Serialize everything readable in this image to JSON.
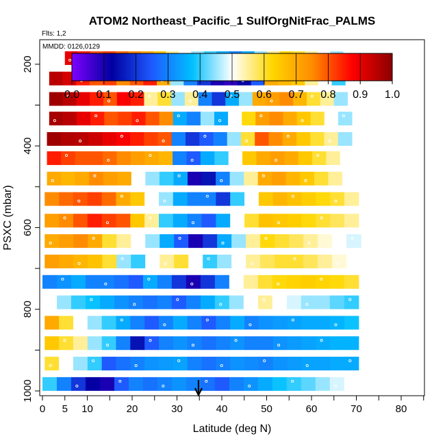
{
  "header": {
    "title": "ATOM2 Northeast_Pacific_1 SulfOrgNitFrac_PALMS",
    "flights_note": "Flts: 1,2",
    "date_note": "MMDD: 0126,0129"
  },
  "colors": {
    "scale": [
      "#7f00ff",
      "#0000a0",
      "#1e5aff",
      "#00bfff",
      "#ffffff",
      "#ffd700",
      "#ff8c00",
      "#ff0000",
      "#8b0000"
    ],
    "marker": "#ffffff",
    "arrow": "#000000"
  },
  "chart_data": {
    "type": "heatmap",
    "xlabel": "Latitude (deg N)",
    "ylabel": "PSXC (mbar)",
    "xlim": [
      0,
      85
    ],
    "ylim_reversed": [
      1000,
      150
    ],
    "x_ticks": [
      0,
      5,
      10,
      20,
      30,
      40,
      50,
      60,
      70,
      80
    ],
    "x_minor_ticks": [
      15,
      25,
      35,
      45,
      55,
      65,
      75,
      85
    ],
    "y_ticks": [
      200,
      400,
      600,
      800,
      1000
    ],
    "y_minor_ticks": [
      300,
      500,
      700,
      900
    ],
    "colorbar": {
      "range": [
        0,
        1
      ],
      "ticks": [
        "0.0",
        "0.1",
        "0.2",
        "0.3",
        "0.4",
        "0.5",
        "0.6",
        "0.7",
        "0.8",
        "0.9",
        "1.0"
      ]
    },
    "profile_marker_latitude": 34.8,
    "layers": [
      {
        "p": 185,
        "lat_start": 5,
        "lat_end": 67,
        "values": [
          0.9,
          0.85,
          0.8,
          0.82,
          0.78,
          0.75,
          0.7,
          0.65,
          0.55,
          0.5,
          0.45,
          0.4,
          0.35,
          0.3,
          0.35,
          0.45,
          0.55,
          0.62,
          0.6,
          0.55,
          0.5,
          0.45
        ]
      },
      {
        "p": 235,
        "lat_start": 1.5,
        "lat_end": 67.5,
        "values": [
          0.95,
          0.92,
          0.85,
          0.8,
          0.82,
          0.75,
          0.8,
          0.85,
          0.7,
          0.45,
          0.3,
          0.2,
          0.1,
          0.08,
          0.12,
          0.25,
          0.7,
          0.68,
          0.65,
          0.55,
          0.5,
          0.4
        ]
      },
      {
        "p": 285,
        "lat_start": 1.5,
        "lat_end": 68,
        "values": [
          0.98,
          0.95,
          0.9,
          0.85,
          0.8,
          0.88,
          0.85,
          0.55,
          0.6,
          0.45,
          0.55,
          0.3,
          0.2,
          0.35,
          0.45,
          0.7,
          0.72,
          0.75,
          0.68,
          0.6,
          0.55,
          0.45
        ]
      },
      {
        "p": 333,
        "lat_start": 1.5,
        "lat_end": 69,
        "values": [
          0.97,
          0.95,
          0.9,
          0.85,
          0.8,
          0.82,
          0.85,
          0.8,
          0.75,
          0.35,
          0.3,
          0.45,
          0.35,
          0.5,
          0.62,
          0.72,
          0.75,
          0.7,
          0.65,
          0.6,
          0.5,
          0.45
        ]
      },
      {
        "p": 383,
        "lat_start": 1,
        "lat_end": 69,
        "values": [
          0.98,
          0.96,
          0.95,
          0.93,
          0.9,
          0.88,
          0.85,
          0.82,
          0.8,
          0.3,
          0.2,
          0.25,
          0.3,
          0.45,
          0.6,
          0.8,
          0.75,
          0.7,
          0.65,
          0.6,
          0.55,
          0.45
        ]
      },
      {
        "p": 430,
        "lat_start": 1,
        "lat_end": 69.5,
        "values": [
          0.85,
          0.82,
          0.8,
          0.8,
          0.78,
          0.75,
          0.72,
          0.7,
          0.68,
          0.3,
          0.25,
          0.35,
          0.4,
          0.5,
          0.65,
          0.7,
          0.72,
          0.7,
          0.65,
          0.6,
          0.55,
          0.5
        ]
      },
      {
        "p": 480,
        "lat_start": 1,
        "lat_end": 70,
        "values": [
          0.7,
          0.68,
          0.7,
          0.75,
          0.72,
          0.7,
          0.5,
          0.45,
          0.4,
          0.35,
          0.1,
          0.15,
          0.3,
          0.45,
          0.55,
          0.7,
          0.72,
          0.68,
          0.65,
          0.6,
          0.55,
          0.5
        ]
      },
      {
        "p": 530,
        "lat_start": 0.5,
        "lat_end": 70.5,
        "values": [
          0.75,
          0.78,
          0.8,
          0.82,
          0.78,
          0.7,
          0.65,
          0.5,
          0.45,
          0.35,
          0.3,
          0.3,
          0.2,
          0.4,
          0.5,
          0.65,
          0.68,
          0.66,
          0.64,
          0.62,
          0.6,
          0.55
        ]
      },
      {
        "p": 583,
        "lat_start": 0.5,
        "lat_end": 70.5,
        "values": [
          0.72,
          0.75,
          0.8,
          0.85,
          0.82,
          0.8,
          0.65,
          0.55,
          0.4,
          0.35,
          0.3,
          0.25,
          0.35,
          0.5,
          0.6,
          0.66,
          0.65,
          0.64,
          0.62,
          0.6,
          0.58,
          0.55
        ]
      },
      {
        "p": 633,
        "lat_start": 0.5,
        "lat_end": 71,
        "values": [
          0.7,
          0.72,
          0.75,
          0.7,
          0.6,
          0.55,
          0.5,
          0.45,
          0.35,
          0.25,
          0.1,
          0.2,
          0.35,
          0.45,
          0.55,
          0.62,
          0.6,
          0.58,
          0.55,
          0.52,
          0.5,
          0.48
        ]
      },
      {
        "p": 683,
        "lat_start": 0.5,
        "lat_end": 71,
        "values": [
          0.72,
          0.7,
          0.68,
          0.66,
          0.6,
          0.45,
          0.4,
          0.5,
          0.55,
          0.6,
          0.5,
          0.4,
          0.45,
          0.5,
          0.55,
          0.58,
          0.6,
          0.6,
          0.58,
          0.55,
          0.52,
          0.5
        ]
      },
      {
        "p": 733,
        "lat_start": 0,
        "lat_end": 70.5,
        "values": [
          0.3,
          0.32,
          0.35,
          0.3,
          0.3,
          0.28,
          0.25,
          0.35,
          0.3,
          0.2,
          0.1,
          0.2,
          0.3,
          0.5,
          0.55,
          0.6,
          0.62,
          0.63,
          0.64,
          0.63,
          0.62,
          0.6
        ]
      },
      {
        "p": 783,
        "lat_start": 0,
        "lat_end": 70.5,
        "values": [
          0.5,
          0.45,
          0.4,
          0.38,
          0.35,
          0.32,
          0.3,
          0.28,
          0.3,
          0.25,
          0.3,
          0.35,
          0.4,
          0.45,
          0.5,
          0.55,
          0.5,
          0.48,
          0.45,
          0.45,
          0.42,
          0.4
        ]
      },
      {
        "p": 833,
        "lat_start": 0.5,
        "lat_end": 70.5,
        "values": [
          0.7,
          0.6,
          0.5,
          0.45,
          0.4,
          0.35,
          0.3,
          0.25,
          0.3,
          0.35,
          0.3,
          0.25,
          0.3,
          0.35,
          0.3,
          0.32,
          0.33,
          0.34,
          0.35,
          0.35,
          0.36,
          0.38
        ]
      },
      {
        "p": 883,
        "lat_start": 0.5,
        "lat_end": 70.5,
        "values": [
          0.65,
          0.6,
          0.55,
          0.45,
          0.4,
          0.3,
          0.15,
          0.25,
          0.3,
          0.32,
          0.3,
          0.28,
          0.3,
          0.32,
          0.3,
          0.3,
          0.32,
          0.33,
          0.34,
          0.35,
          0.36,
          0.36
        ]
      },
      {
        "p": 933,
        "lat_start": 0.5,
        "lat_end": 70.5,
        "values": [
          0.6,
          0.5,
          0.45,
          0.4,
          0.25,
          0.28,
          0.3,
          0.32,
          0.33,
          0.34,
          0.3,
          0.28,
          0.3,
          0.32,
          0.31,
          0.3,
          0.32,
          0.33,
          0.34,
          0.34,
          0.35,
          0.35
        ]
      },
      {
        "p": 983,
        "lat_start": 0,
        "lat_end": 70.5,
        "values": [
          0.4,
          0.3,
          0.2,
          0.12,
          0.1,
          0.25,
          0.3,
          0.28,
          0.3,
          0.32,
          0.3,
          0.28,
          0.25,
          0.3,
          0.32,
          0.35,
          0.38,
          0.4,
          0.42,
          0.45,
          0.48,
          0.5
        ]
      }
    ]
  }
}
